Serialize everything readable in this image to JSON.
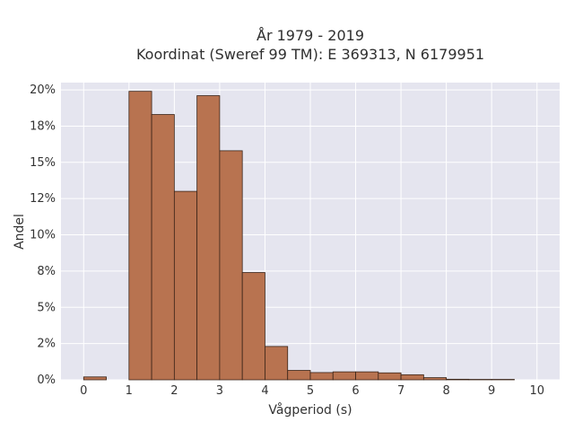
{
  "chart_data": {
    "type": "bar",
    "title_line1": "År 1979 - 2019",
    "title_line2": "Koordinat (Sweref 99 TM): E 369313, N 6179951",
    "xlabel": "Vågperiod (s)",
    "ylabel": "Andel",
    "xlim": [
      -0.5,
      10.5
    ],
    "ylim": [
      0,
      20.5
    ],
    "x_ticks": [
      0,
      1,
      2,
      3,
      4,
      5,
      6,
      7,
      8,
      9,
      10
    ],
    "y_ticks": [
      0,
      2.5,
      5,
      7.5,
      10,
      12.5,
      15,
      17.5,
      20
    ],
    "y_tick_labels": [
      "0%",
      "2%",
      "5%",
      "8%",
      "10%",
      "12%",
      "15%",
      "18%",
      "20%"
    ],
    "bin_width": 0.5,
    "bins": [
      {
        "x0": 0.0,
        "value": 0.2
      },
      {
        "x0": 1.0,
        "value": 19.9
      },
      {
        "x0": 1.5,
        "value": 18.3
      },
      {
        "x0": 2.0,
        "value": 13.0
      },
      {
        "x0": 2.5,
        "value": 19.6
      },
      {
        "x0": 3.0,
        "value": 15.8
      },
      {
        "x0": 3.5,
        "value": 7.4
      },
      {
        "x0": 4.0,
        "value": 2.3
      },
      {
        "x0": 4.5,
        "value": 0.65
      },
      {
        "x0": 5.0,
        "value": 0.5
      },
      {
        "x0": 5.5,
        "value": 0.55
      },
      {
        "x0": 6.0,
        "value": 0.55
      },
      {
        "x0": 6.5,
        "value": 0.48
      },
      {
        "x0": 7.0,
        "value": 0.35
      },
      {
        "x0": 7.5,
        "value": 0.15
      },
      {
        "x0": 8.0,
        "value": 0.04
      },
      {
        "x0": 8.5,
        "value": 0.03
      },
      {
        "x0": 9.0,
        "value": 0.03
      }
    ],
    "bar_color": "#b87350",
    "bar_edge_color": "#3a2418",
    "plot_background": "#e5e5ef",
    "grid": true,
    "legend": false
  }
}
